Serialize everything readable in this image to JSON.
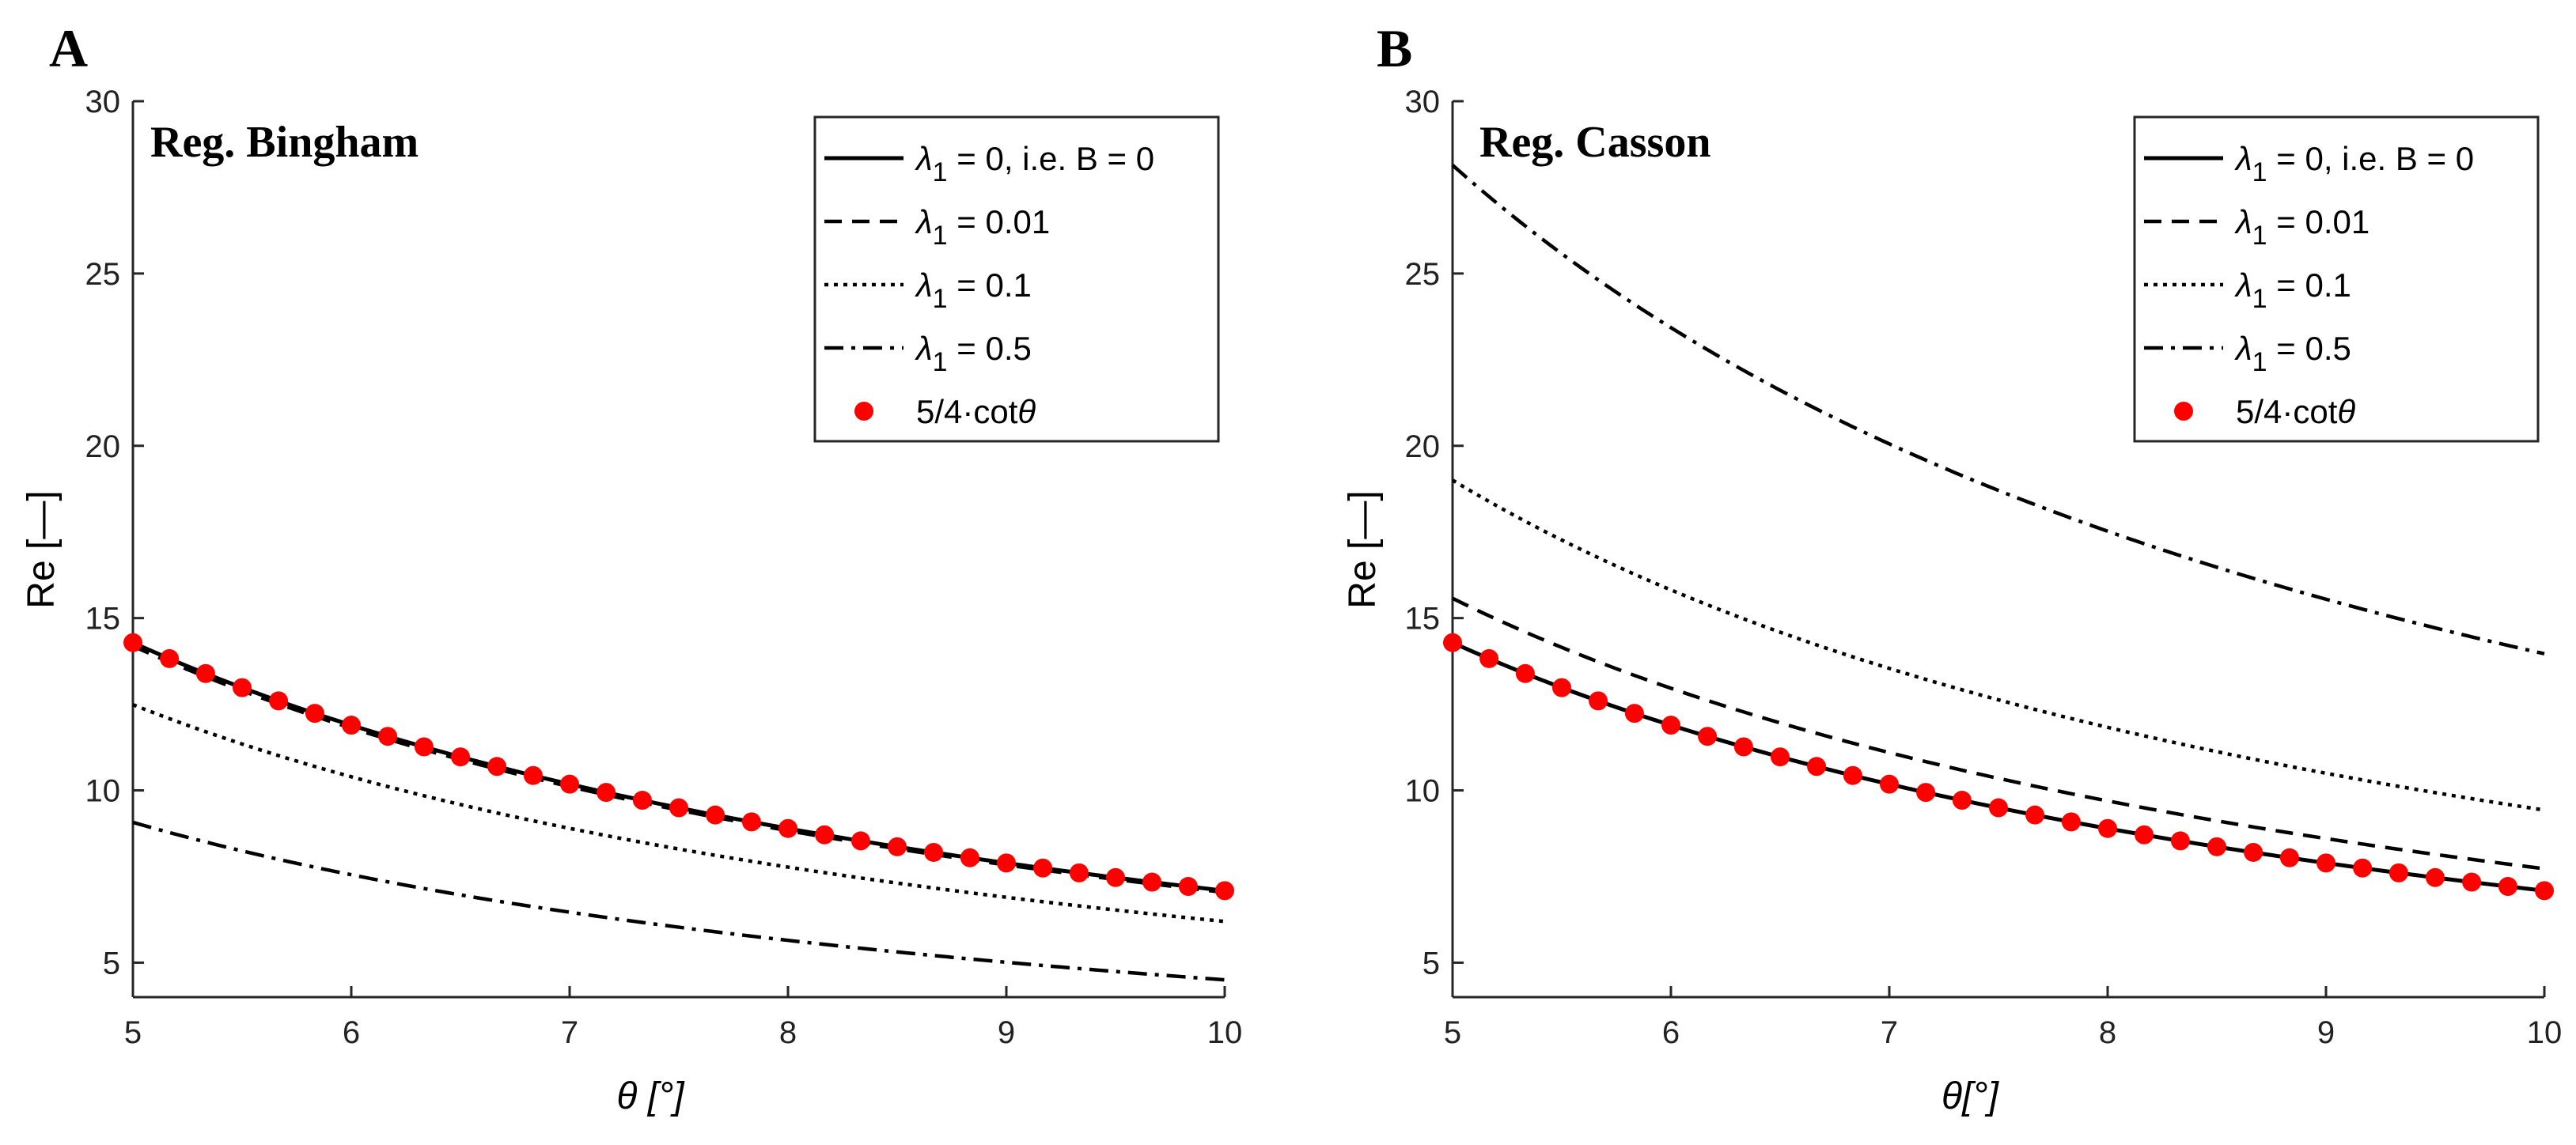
{
  "chart_data": [
    {
      "type": "line",
      "panel_label": "A",
      "title": "Reg. Bingham",
      "xlabel": "θ [°]",
      "ylabel": "Re [—]",
      "xlim": [
        5,
        10
      ],
      "ylim": [
        4,
        30
      ],
      "xticks": [
        5,
        6,
        7,
        8,
        9,
        10
      ],
      "yticks": [
        5,
        10,
        15,
        20,
        25,
        30
      ],
      "grid": false,
      "legend_position": "top-right",
      "series": [
        {
          "name": "λ1 = 0, i.e. B = 0",
          "label_main": "λ",
          "label_sub": "1",
          "label_rest": " = 0, i.e. B = 0",
          "style": "solid",
          "color": "#000000",
          "formula": "1.25*cot(theta)",
          "scale": 1.0
        },
        {
          "name": "λ1 = 0.01",
          "label_main": "λ",
          "label_sub": "1",
          "label_rest": " = 0.01",
          "style": "dashed",
          "color": "#000000",
          "formula": "1.25*cot(theta)*k",
          "scale": 0.993
        },
        {
          "name": "λ1 = 0.1",
          "label_main": "λ",
          "label_sub": "1",
          "label_rest": " = 0.1",
          "style": "dotted",
          "color": "#000000",
          "formula": "1.25*cot(theta)*k",
          "scale": 0.874
        },
        {
          "name": "λ1 = 0.5",
          "label_main": "λ",
          "label_sub": "1",
          "label_rest": " = 0.5",
          "style": "dashdot",
          "color": "#000000",
          "formula": "1.25*cot(theta)*k",
          "scale": 0.635
        },
        {
          "name": "5/4·cotθ",
          "label_main": "5/4·cot",
          "label_sub": "",
          "label_rest": "θ",
          "style": "markers",
          "color": "#ff0000",
          "formula": "1.25*cot(theta)",
          "marker_x": [
            5.0,
            5.167,
            5.333,
            5.5,
            5.667,
            5.833,
            6.0,
            6.167,
            6.333,
            6.5,
            6.667,
            6.833,
            7.0,
            7.167,
            7.333,
            7.5,
            7.667,
            7.833,
            8.0,
            8.167,
            8.333,
            8.5,
            8.667,
            8.833,
            9.0,
            9.167,
            9.333,
            9.5,
            9.667,
            9.833,
            10.0
          ]
        }
      ]
    },
    {
      "type": "line",
      "panel_label": "B",
      "title": "Reg. Casson",
      "xlabel": "θ[°]",
      "ylabel": "Re [—]",
      "xlim": [
        5,
        10
      ],
      "ylim": [
        4,
        30
      ],
      "xticks": [
        5,
        6,
        7,
        8,
        9,
        10
      ],
      "yticks": [
        5,
        10,
        15,
        20,
        25,
        30
      ],
      "grid": false,
      "legend_position": "top-right",
      "series": [
        {
          "name": "λ1 = 0, i.e. B = 0",
          "label_main": "λ",
          "label_sub": "1",
          "label_rest": " = 0, i.e. B = 0",
          "style": "solid",
          "color": "#000000",
          "formula": "1.25*cot(theta)",
          "scale": 1.0
        },
        {
          "name": "λ1 = 0.01",
          "label_main": "λ",
          "label_sub": "1",
          "label_rest": " = 0.01",
          "style": "dashed",
          "color": "#000000",
          "formula": "1.25*cot(theta)*k",
          "scale": 1.09
        },
        {
          "name": "λ1 = 0.1",
          "label_main": "λ",
          "label_sub": "1",
          "label_rest": " = 0.1",
          "style": "dotted",
          "color": "#000000",
          "formula": "1.25*cot(theta)*k",
          "scale": 1.33
        },
        {
          "name": "λ1 = 0.5",
          "label_main": "λ",
          "label_sub": "1",
          "label_rest": " = 0.5",
          "style": "dashdot",
          "color": "#000000",
          "formula": "1.25*cot(theta)*k",
          "scale": 1.97
        },
        {
          "name": "5/4·cotθ",
          "label_main": "5/4·cot",
          "label_sub": "",
          "label_rest": "θ",
          "style": "markers",
          "color": "#ff0000",
          "formula": "1.25*cot(theta)",
          "marker_x": [
            5.0,
            5.167,
            5.333,
            5.5,
            5.667,
            5.833,
            6.0,
            6.167,
            6.333,
            6.5,
            6.667,
            6.833,
            7.0,
            7.167,
            7.333,
            7.5,
            7.667,
            7.833,
            8.0,
            8.167,
            8.333,
            8.5,
            8.667,
            8.833,
            9.0,
            9.167,
            9.333,
            9.5,
            9.667,
            9.833,
            10.0
          ]
        }
      ]
    }
  ]
}
